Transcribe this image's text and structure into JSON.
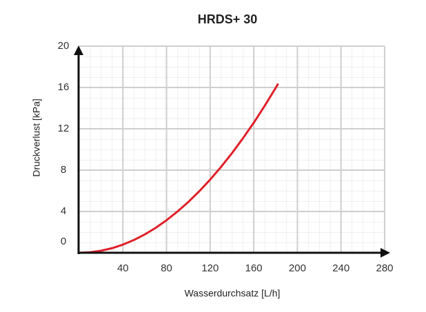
{
  "chart_data": {
    "type": "line",
    "title": "HRDS+ 30",
    "x_label": "Wasserdurchsatz [L/h]",
    "y_label": "Druckverlust [kPa]",
    "x": [
      0,
      10,
      20,
      30,
      40,
      50,
      60,
      70,
      80,
      90,
      100,
      110,
      120,
      130,
      140,
      150,
      160,
      170,
      180,
      182
    ],
    "values": [
      0,
      0.05,
      0.2,
      0.44,
      0.79,
      1.23,
      1.77,
      2.41,
      3.15,
      3.99,
      4.92,
      5.95,
      7.08,
      8.31,
      9.64,
      11.07,
      12.59,
      14.22,
      15.94,
      16.3
    ],
    "color": "#e0202a",
    "xlim": [
      0,
      280
    ],
    "xticks": [
      40,
      80,
      120,
      160,
      200,
      240,
      280
    ],
    "ylim": [
      0,
      20
    ],
    "yticks": [
      0,
      4,
      8,
      12,
      16,
      20
    ],
    "grid": true
  }
}
